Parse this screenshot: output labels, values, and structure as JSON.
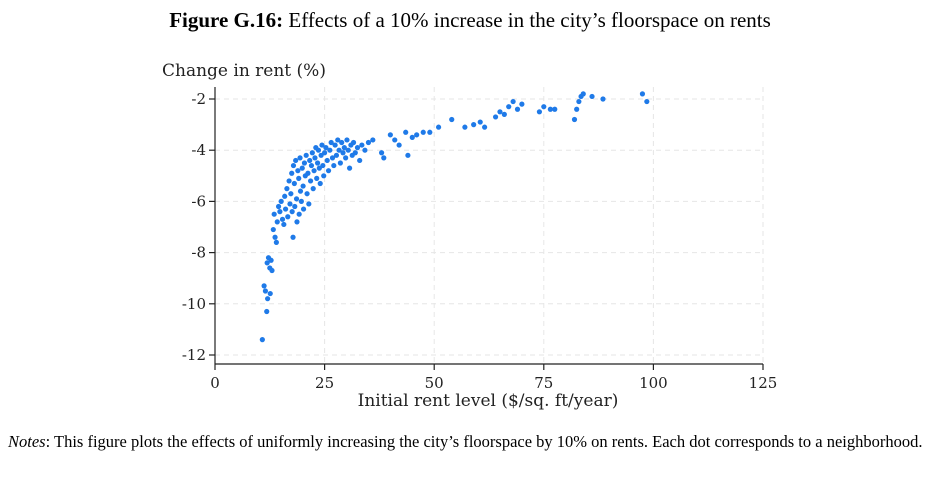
{
  "figure": {
    "label": "Figure G.16:",
    "title": "Effects of a 10% increase in the city’s floorspace on rents"
  },
  "notes": {
    "label": "Notes",
    "text": ": This figure plots the effects of uniformly increasing the city’s floorspace by 10% on rents. Each dot corresponds to a neighborhood."
  },
  "chart_data": {
    "type": "scatter",
    "xlabel": "Initial rent level ($/sq. ft/year)",
    "ylabel": "Change in rent (%)",
    "xlim": [
      0,
      125
    ],
    "ylim": [
      -12,
      -2
    ],
    "xticks": [
      0,
      25,
      50,
      75,
      100,
      125
    ],
    "yticks": [
      -2,
      -4,
      -6,
      -8,
      -10,
      -12
    ],
    "grid": true,
    "marker_color": "#1f7ae8",
    "series": [
      {
        "points": [
          [
            10.8,
            -11.4
          ],
          [
            11.2,
            -9.3
          ],
          [
            11.5,
            -9.5
          ],
          [
            11.8,
            -10.3
          ],
          [
            12.0,
            -9.8
          ],
          [
            11.9,
            -8.4
          ],
          [
            12.2,
            -8.2
          ],
          [
            12.5,
            -8.6
          ],
          [
            12.8,
            -8.3
          ],
          [
            12.6,
            -9.6
          ],
          [
            13.0,
            -8.7
          ],
          [
            13.3,
            -7.1
          ],
          [
            13.7,
            -7.4
          ],
          [
            14.0,
            -7.6
          ],
          [
            13.5,
            -6.5
          ],
          [
            14.2,
            -6.8
          ],
          [
            14.5,
            -6.2
          ],
          [
            14.8,
            -6.4
          ],
          [
            15.1,
            -6.0
          ],
          [
            15.4,
            -6.7
          ],
          [
            15.7,
            -6.9
          ],
          [
            15.9,
            -5.8
          ],
          [
            16.1,
            -6.3
          ],
          [
            16.4,
            -5.5
          ],
          [
            16.6,
            -6.6
          ],
          [
            16.9,
            -5.2
          ],
          [
            17.1,
            -6.1
          ],
          [
            17.3,
            -5.7
          ],
          [
            17.5,
            -4.9
          ],
          [
            17.6,
            -6.4
          ],
          [
            17.8,
            -7.4
          ],
          [
            17.9,
            -4.6
          ],
          [
            18.1,
            -5.3
          ],
          [
            18.2,
            -6.2
          ],
          [
            18.4,
            -4.4
          ],
          [
            18.6,
            -5.9
          ],
          [
            18.7,
            -6.8
          ],
          [
            18.9,
            -4.8
          ],
          [
            19.1,
            -5.1
          ],
          [
            19.2,
            -6.5
          ],
          [
            19.4,
            -4.3
          ],
          [
            19.5,
            -5.6
          ],
          [
            19.7,
            -6.0
          ],
          [
            19.9,
            -4.7
          ],
          [
            20.1,
            -5.4
          ],
          [
            20.2,
            -6.3
          ],
          [
            20.4,
            -4.5
          ],
          [
            20.6,
            -5.0
          ],
          [
            20.8,
            -4.2
          ],
          [
            21.0,
            -5.7
          ],
          [
            21.2,
            -4.9
          ],
          [
            21.4,
            -6.1
          ],
          [
            21.6,
            -4.4
          ],
          [
            21.8,
            -5.2
          ],
          [
            22.0,
            -4.6
          ],
          [
            22.2,
            -4.1
          ],
          [
            22.4,
            -5.5
          ],
          [
            22.6,
            -4.8
          ],
          [
            22.8,
            -4.3
          ],
          [
            23.0,
            -3.9
          ],
          [
            23.2,
            -5.1
          ],
          [
            23.4,
            -4.5
          ],
          [
            23.6,
            -4.0
          ],
          [
            23.8,
            -4.7
          ],
          [
            24.0,
            -5.3
          ],
          [
            24.2,
            -4.2
          ],
          [
            24.4,
            -3.8
          ],
          [
            24.6,
            -4.6
          ],
          [
            24.8,
            -5.0
          ],
          [
            25.0,
            -4.1
          ],
          [
            25.3,
            -3.9
          ],
          [
            25.6,
            -4.4
          ],
          [
            25.9,
            -4.8
          ],
          [
            26.2,
            -4.0
          ],
          [
            26.5,
            -3.7
          ],
          [
            26.8,
            -4.3
          ],
          [
            27.1,
            -4.6
          ],
          [
            27.4,
            -3.8
          ],
          [
            27.7,
            -4.2
          ],
          [
            28.0,
            -3.6
          ],
          [
            28.3,
            -4.0
          ],
          [
            28.6,
            -4.5
          ],
          [
            28.9,
            -3.7
          ],
          [
            29.2,
            -4.1
          ],
          [
            29.5,
            -3.9
          ],
          [
            29.8,
            -4.3
          ],
          [
            30.1,
            -3.6
          ],
          [
            30.4,
            -4.0
          ],
          [
            30.7,
            -4.7
          ],
          [
            31.0,
            -3.8
          ],
          [
            31.3,
            -4.2
          ],
          [
            31.6,
            -3.7
          ],
          [
            32.0,
            -4.1
          ],
          [
            32.5,
            -3.9
          ],
          [
            33.0,
            -4.4
          ],
          [
            33.5,
            -3.8
          ],
          [
            34.2,
            -4.0
          ],
          [
            35.0,
            -3.7
          ],
          [
            36.0,
            -3.6
          ],
          [
            38.0,
            -4.1
          ],
          [
            38.5,
            -4.3
          ],
          [
            40.0,
            -3.4
          ],
          [
            41.0,
            -3.6
          ],
          [
            42.0,
            -3.8
          ],
          [
            43.5,
            -3.3
          ],
          [
            44.0,
            -4.2
          ],
          [
            45.0,
            -3.5
          ],
          [
            46.0,
            -3.4
          ],
          [
            47.5,
            -3.3
          ],
          [
            49.0,
            -3.3
          ],
          [
            51.0,
            -3.1
          ],
          [
            54.0,
            -2.8
          ],
          [
            57.0,
            -3.1
          ],
          [
            59.0,
            -3.0
          ],
          [
            60.5,
            -2.9
          ],
          [
            61.5,
            -3.1
          ],
          [
            64.0,
            -2.7
          ],
          [
            65.0,
            -2.5
          ],
          [
            66.0,
            -2.6
          ],
          [
            67.0,
            -2.3
          ],
          [
            68.0,
            -2.1
          ],
          [
            69.0,
            -2.4
          ],
          [
            70.0,
            -2.2
          ],
          [
            74.0,
            -2.5
          ],
          [
            75.0,
            -2.3
          ],
          [
            76.5,
            -2.4
          ],
          [
            77.5,
            -2.4
          ],
          [
            82.0,
            -2.8
          ],
          [
            82.5,
            -2.4
          ],
          [
            83.0,
            -2.1
          ],
          [
            83.5,
            -1.9
          ],
          [
            84.0,
            -1.8
          ],
          [
            86.0,
            -1.9
          ],
          [
            88.5,
            -2.0
          ],
          [
            97.5,
            -1.8
          ],
          [
            98.5,
            -2.1
          ]
        ]
      }
    ]
  }
}
